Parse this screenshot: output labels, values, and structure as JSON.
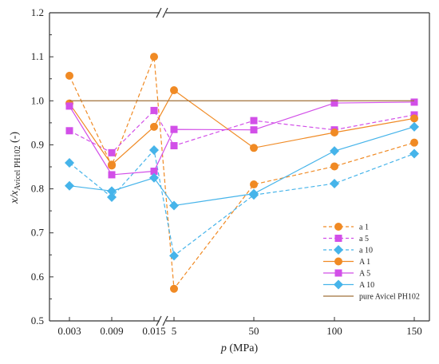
{
  "chart_data": {
    "type": "line",
    "xlabel": "p (MPa)",
    "ylabel": "x/x Avicel PH102 (-)",
    "ylim": [
      0.5,
      1.2
    ],
    "yticks": [
      "0.5",
      "0.6",
      "0.7",
      "0.8",
      "0.9",
      "1.0",
      "1.1",
      "1.2"
    ],
    "x_ticks": [
      "0.003",
      "0.009",
      "0.015",
      "5",
      "50",
      "100",
      "150"
    ],
    "x_break": "between 0.015 and 5",
    "grid": false,
    "legend_position": "bottom-right",
    "colors": {
      "orange": "#F08A24",
      "magenta": "#D24FE8",
      "blue": "#46B4EA",
      "brown": "#A0703A",
      "axis": "#333333"
    },
    "series": [
      {
        "name": "a 1",
        "marker": "circle",
        "color": "#F08A24",
        "dash": true,
        "x": [
          "0.003",
          "0.009",
          "0.015",
          "5",
          "50",
          "100",
          "150"
        ],
        "values": [
          1.057,
          0.853,
          1.1,
          0.573,
          0.81,
          0.851,
          0.905
        ]
      },
      {
        "name": "a 5",
        "marker": "square",
        "color": "#D24FE8",
        "dash": true,
        "x": [
          "0.003",
          "0.009",
          "0.015",
          "5",
          "50",
          "100",
          "150"
        ],
        "values": [
          0.932,
          0.882,
          0.978,
          0.898,
          0.955,
          0.934,
          0.968
        ]
      },
      {
        "name": "a 10",
        "marker": "diamond",
        "color": "#46B4EA",
        "dash": true,
        "x": [
          "0.003",
          "0.009",
          "0.015",
          "5",
          "50",
          "100",
          "150"
        ],
        "values": [
          0.859,
          0.781,
          0.888,
          0.648,
          0.786,
          0.812,
          0.88
        ]
      },
      {
        "name": "A 1",
        "marker": "circle",
        "color": "#F08A24",
        "dash": false,
        "x": [
          "0.003",
          "0.009",
          "0.015",
          "5",
          "50",
          "100",
          "150"
        ],
        "values": [
          0.994,
          0.855,
          0.941,
          1.024,
          0.893,
          0.928,
          0.96
        ]
      },
      {
        "name": "A 5",
        "marker": "square",
        "color": "#D24FE8",
        "dash": false,
        "x": [
          "0.003",
          "0.009",
          "0.015",
          "5",
          "50",
          "100",
          "150"
        ],
        "values": [
          0.988,
          0.832,
          0.84,
          0.935,
          0.934,
          0.995,
          0.997
        ]
      },
      {
        "name": "A 10",
        "marker": "diamond",
        "color": "#46B4EA",
        "dash": false,
        "x": [
          "0.003",
          "0.009",
          "0.015",
          "5",
          "50",
          "100",
          "150"
        ],
        "values": [
          0.807,
          0.795,
          0.825,
          0.762,
          0.789,
          0.886,
          0.941
        ]
      },
      {
        "name": "pure Avicel PH102",
        "marker": "none",
        "color": "#A0703A",
        "dash": false,
        "x": [
          "0.003",
          "150"
        ],
        "values": [
          1.0,
          1.0
        ]
      }
    ]
  }
}
